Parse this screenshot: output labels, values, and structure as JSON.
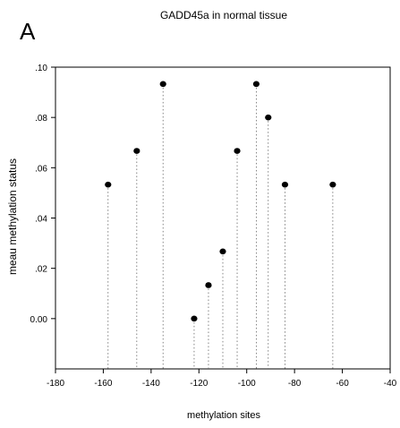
{
  "chart_data": {
    "type": "scatter",
    "panel_label": "A",
    "title": "GADD45a in normal tissue",
    "xlabel": "methylation sites",
    "ylabel": "meau methylation status",
    "xlim": [
      -180,
      -40
    ],
    "ylim": [
      -0.02,
      0.1
    ],
    "x_ticks": [
      -180,
      -160,
      -140,
      -120,
      -100,
      -80,
      -60,
      -40
    ],
    "x_tick_labels": [
      "-180",
      "-160",
      "-140",
      "-120",
      "-100",
      "-80",
      "-60",
      "-40"
    ],
    "y_ticks": [
      0.0,
      0.02,
      0.04,
      0.06,
      0.08,
      0.1
    ],
    "y_tick_labels": [
      "0.00",
      ".02",
      ".04",
      ".06",
      ".08",
      ".10"
    ],
    "drop_lines": true,
    "drop_line_base": -0.02,
    "grid": false,
    "series": [
      {
        "points": [
          {
            "x": -158,
            "y": 0.0533
          },
          {
            "x": -146,
            "y": 0.0667
          },
          {
            "x": -135,
            "y": 0.0933
          },
          {
            "x": -122,
            "y": 0.0
          },
          {
            "x": -116,
            "y": 0.0133
          },
          {
            "x": -110,
            "y": 0.0267
          },
          {
            "x": -104,
            "y": 0.0667
          },
          {
            "x": -96,
            "y": 0.0933
          },
          {
            "x": -91,
            "y": 0.08
          },
          {
            "x": -84,
            "y": 0.0533
          },
          {
            "x": -64,
            "y": 0.0533
          }
        ],
        "color": "#000000"
      }
    ]
  }
}
